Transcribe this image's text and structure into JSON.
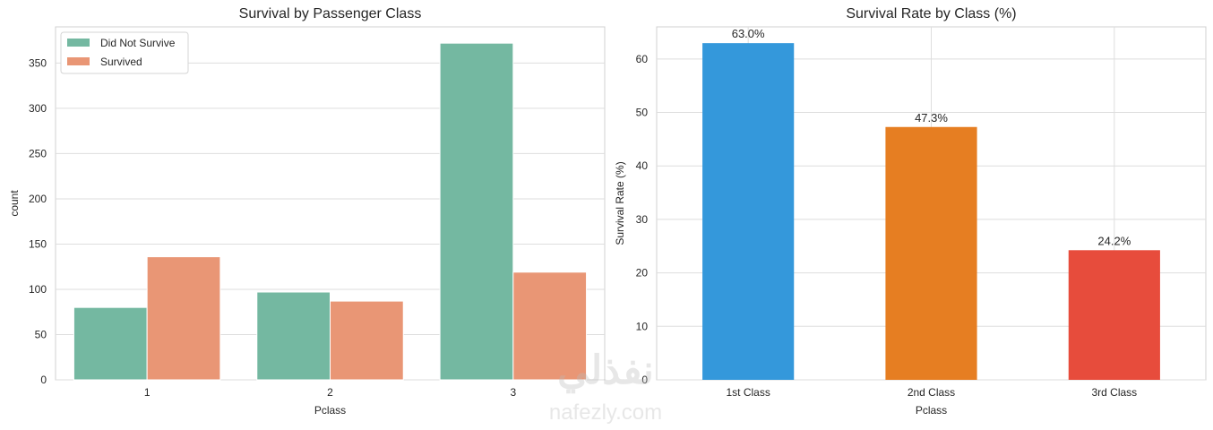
{
  "watermark": {
    "text": "nafezly.com",
    "arabic": "نفذلي"
  },
  "chart_data": [
    {
      "type": "bar",
      "title": "Survival by Passenger Class",
      "xlabel": "Pclass",
      "ylabel": "count",
      "categories": [
        "1",
        "2",
        "3"
      ],
      "ylim": [
        0,
        390
      ],
      "yticks": [
        0,
        50,
        100,
        150,
        200,
        250,
        300,
        350
      ],
      "grid": "horizontal",
      "legend": "top-left",
      "series": [
        {
          "name": "Did Not Survive",
          "color": "#74b8a1",
          "values": [
            80,
            97,
            372
          ]
        },
        {
          "name": "Survived",
          "color": "#e99675",
          "values": [
            136,
            87,
            119
          ]
        }
      ]
    },
    {
      "type": "bar",
      "title": "Survival Rate by Class (%)",
      "xlabel": "Pclass",
      "ylabel": "Survival Rate (%)",
      "categories": [
        "1st Class",
        "2nd Class",
        "3rd Class"
      ],
      "ylim": [
        0,
        66
      ],
      "yticks": [
        0,
        10,
        20,
        30,
        40,
        50,
        60
      ],
      "grid": "both",
      "values": [
        62.96,
        47.28,
        24.24
      ],
      "data_labels": [
        "63.0%",
        "47.3%",
        "24.2%"
      ],
      "colors": [
        "#3498db",
        "#e67e22",
        "#e74c3c"
      ]
    }
  ]
}
